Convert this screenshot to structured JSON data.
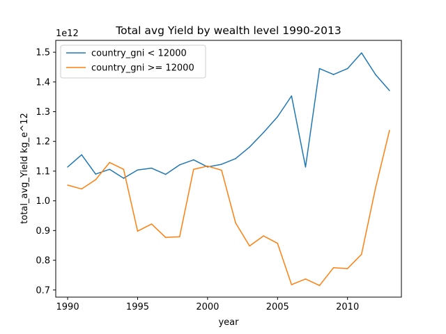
{
  "chart_data": {
    "type": "line",
    "title": "Total avg Yield by wealth level 1990-2013",
    "xlabel": "year",
    "ylabel": "total_avg_Yield kg_e^12",
    "y_offset_label": "1e12",
    "xlim": [
      1989.15,
      2013.85
    ],
    "ylim": [
      0.676,
      1.54
    ],
    "x_ticks": [
      1990,
      1995,
      2000,
      2005,
      2010
    ],
    "y_ticks": [
      0.7,
      0.8,
      0.9,
      1.0,
      1.1,
      1.2,
      1.3,
      1.4,
      1.5
    ],
    "y_tick_labels": [
      "0.7",
      "0.8",
      "0.9",
      "1.0",
      "1.1",
      "1.2",
      "1.3",
      "1.4",
      "1.5"
    ],
    "legend_position": "upper-left",
    "grid": false,
    "x": [
      1990,
      1991,
      1992,
      1993,
      1994,
      1995,
      1996,
      1997,
      1998,
      1999,
      2000,
      2001,
      2002,
      2003,
      2004,
      2005,
      2006,
      2007,
      2008,
      2009,
      2010,
      2011,
      2012,
      2013
    ],
    "series": [
      {
        "name": "country_gni < 12000",
        "color": "#1f77b4",
        "values": [
          1.114,
          1.155,
          1.09,
          1.106,
          1.076,
          1.104,
          1.11,
          1.089,
          1.121,
          1.138,
          1.114,
          1.123,
          1.142,
          1.181,
          1.23,
          1.283,
          1.353,
          1.114,
          1.445,
          1.425,
          1.445,
          1.498,
          1.425,
          1.371
        ]
      },
      {
        "name": "country_gni >= 12000",
        "color": "#ff7f0e",
        "values": [
          1.053,
          1.04,
          1.071,
          1.129,
          1.106,
          0.898,
          0.922,
          0.877,
          0.879,
          1.106,
          1.117,
          1.103,
          0.926,
          0.848,
          0.882,
          0.857,
          0.718,
          0.737,
          0.715,
          0.775,
          0.772,
          0.82,
          1.043,
          1.237
        ]
      }
    ]
  }
}
